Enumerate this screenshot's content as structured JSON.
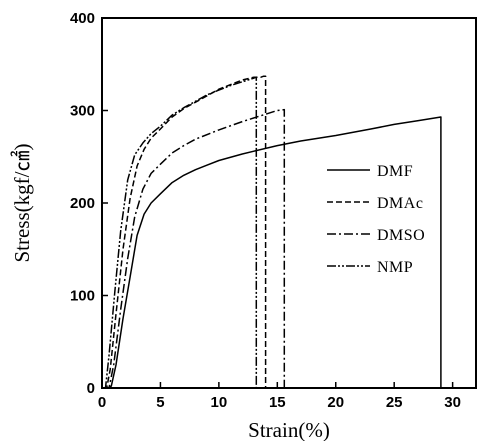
{
  "chart_data": {
    "type": "line",
    "xlabel": "Strain(%)",
    "ylabel": "Stress(kgf/㎠)",
    "xlim": [
      0,
      32
    ],
    "ylim": [
      0,
      400
    ],
    "x_ticks": [
      0,
      5,
      10,
      15,
      20,
      25,
      30
    ],
    "y_ticks": [
      0,
      100,
      200,
      300,
      400
    ],
    "grid": false,
    "legend_position": "right",
    "series": [
      {
        "name": "DMF",
        "dash": "solid",
        "points": [
          [
            0.1,
            0
          ],
          [
            0.5,
            0
          ],
          [
            0.8,
            2
          ],
          [
            1.2,
            25
          ],
          [
            1.8,
            75
          ],
          [
            2.4,
            120
          ],
          [
            3,
            165
          ],
          [
            3.6,
            188
          ],
          [
            4.2,
            200
          ],
          [
            5,
            210
          ],
          [
            6,
            222
          ],
          [
            7,
            230
          ],
          [
            8,
            236
          ],
          [
            9,
            241
          ],
          [
            10,
            246
          ],
          [
            12,
            253
          ],
          [
            13,
            256
          ],
          [
            15,
            262
          ],
          [
            17,
            267
          ],
          [
            20,
            273
          ],
          [
            23,
            280
          ],
          [
            25,
            285
          ],
          [
            27,
            289
          ],
          [
            29,
            293
          ],
          [
            29,
            0
          ]
        ]
      },
      {
        "name": "DMAc",
        "dash": "6,3",
        "points": [
          [
            0.1,
            0
          ],
          [
            0.4,
            0
          ],
          [
            0.7,
            20
          ],
          [
            1.2,
            80
          ],
          [
            1.8,
            150
          ],
          [
            2.4,
            205
          ],
          [
            3,
            240
          ],
          [
            3.6,
            258
          ],
          [
            4.2,
            270
          ],
          [
            5,
            280
          ],
          [
            6,
            293
          ],
          [
            7,
            302
          ],
          [
            8,
            309
          ],
          [
            9,
            316
          ],
          [
            10,
            323
          ],
          [
            11,
            328
          ],
          [
            12,
            333
          ],
          [
            13,
            336
          ],
          [
            13.6,
            336
          ],
          [
            13.8,
            337
          ],
          [
            14,
            337
          ],
          [
            14,
            0
          ]
        ]
      },
      {
        "name": "DMSO",
        "dash": "9,3,2,3",
        "points": [
          [
            0.1,
            0
          ],
          [
            0.6,
            0
          ],
          [
            1,
            25
          ],
          [
            1.6,
            85
          ],
          [
            2.2,
            140
          ],
          [
            2.8,
            185
          ],
          [
            3.5,
            215
          ],
          [
            4.2,
            232
          ],
          [
            5,
            242
          ],
          [
            6,
            254
          ],
          [
            7,
            262
          ],
          [
            8,
            269
          ],
          [
            10,
            279
          ],
          [
            12,
            288
          ],
          [
            14,
            296
          ],
          [
            15,
            300
          ],
          [
            15.6,
            301
          ],
          [
            15.6,
            0
          ]
        ]
      },
      {
        "name": "NMP",
        "dash": "9,2,2,2,2,2",
        "points": [
          [
            0.1,
            0
          ],
          [
            0.3,
            0
          ],
          [
            0.6,
            35
          ],
          [
            1.1,
            105
          ],
          [
            1.6,
            170
          ],
          [
            2.2,
            225
          ],
          [
            2.8,
            252
          ],
          [
            3.5,
            265
          ],
          [
            4.2,
            275
          ],
          [
            5,
            283
          ],
          [
            6,
            295
          ],
          [
            7,
            303
          ],
          [
            8,
            310
          ],
          [
            9,
            317
          ],
          [
            10,
            322
          ],
          [
            11,
            327
          ],
          [
            12,
            331
          ],
          [
            13,
            335
          ],
          [
            13.2,
            336
          ],
          [
            13.2,
            0
          ]
        ]
      }
    ]
  }
}
